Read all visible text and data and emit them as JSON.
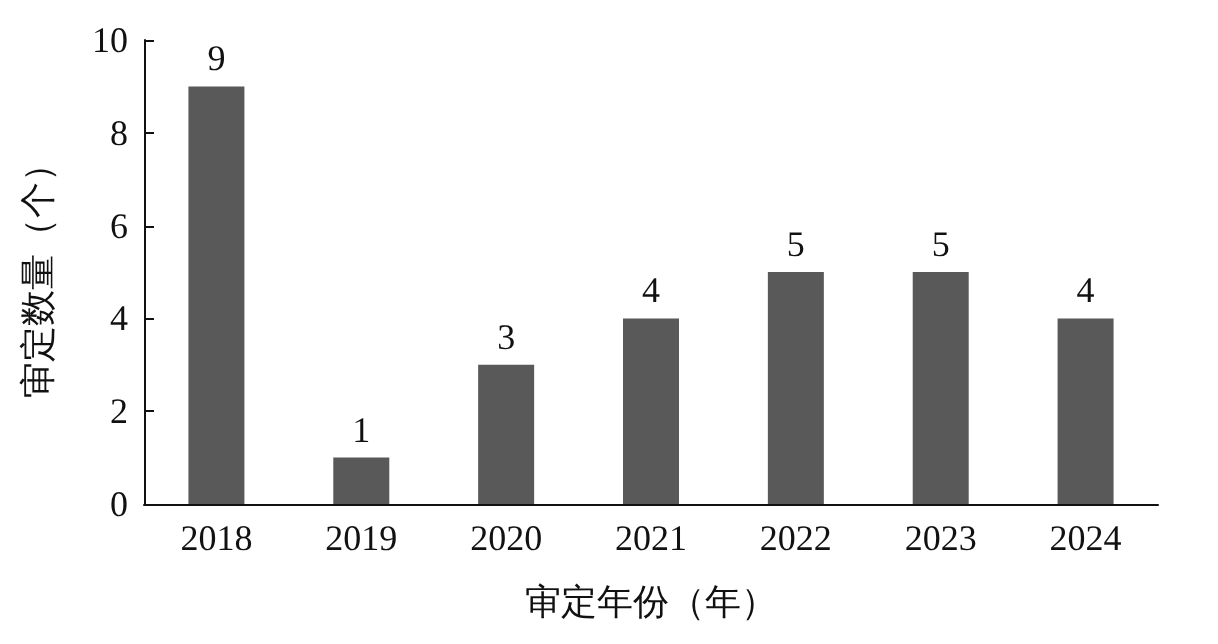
{
  "chart_data": {
    "type": "bar",
    "xlabel": "审定年份（年）",
    "ylabel": "审定数量（个）",
    "categories": [
      "2018",
      "2019",
      "2020",
      "2021",
      "2022",
      "2023",
      "2024"
    ],
    "values": [
      9,
      1,
      3,
      4,
      5,
      5,
      4
    ],
    "color": "#595959",
    "ylim": [
      0,
      10
    ],
    "yticks": [
      0,
      2,
      4,
      6,
      8,
      10
    ],
    "grid": false,
    "data_labels": true
  }
}
